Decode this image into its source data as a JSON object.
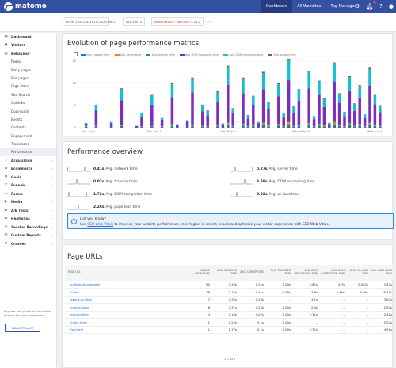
{
  "topbar": {
    "logo": "matomo",
    "nav": [
      "Dashboard",
      "All Websites",
      "Tag Manager"
    ],
    "notification_count": "2",
    "icons": [
      "gear-icon",
      "bell-icon",
      "help-icon",
      "user-icon"
    ]
  },
  "subbar": {
    "date_range": "FROM 2023-04-01 TO 2023-06-17",
    "segment": "ALL VISITS",
    "update": "NEW UPDATE: MATOMO 4.14.2",
    "collapse_icon": "chevron-up-icon"
  },
  "sidebar": {
    "items": [
      {
        "label": "Dashboard",
        "icon": "grid-icon",
        "type": "cat"
      },
      {
        "label": "Visitors",
        "icon": "user-icon",
        "type": "cat"
      },
      {
        "label": "Behaviour",
        "icon": "chart-icon",
        "type": "cat"
      },
      {
        "label": "Pages",
        "type": "sub"
      },
      {
        "label": "Entry pages",
        "type": "sub"
      },
      {
        "label": "Exit pages",
        "type": "sub"
      },
      {
        "label": "Page titles",
        "type": "sub"
      },
      {
        "label": "Site Search",
        "type": "sub"
      },
      {
        "label": "Outlinks",
        "type": "sub"
      },
      {
        "label": "Downloads",
        "type": "sub"
      },
      {
        "label": "Events",
        "type": "sub"
      },
      {
        "label": "Contents",
        "type": "sub"
      },
      {
        "label": "Engagement",
        "type": "sub"
      },
      {
        "label": "Transitions",
        "type": "sub"
      },
      {
        "label": "Performance",
        "type": "sub",
        "selected": true
      },
      {
        "label": "Acquisition",
        "icon": "share-icon",
        "type": "cat"
      },
      {
        "label": "Ecommerce",
        "icon": "cart-icon",
        "type": "cat"
      },
      {
        "label": "Goals",
        "icon": "flag-icon",
        "type": "cat"
      },
      {
        "label": "Funnels",
        "icon": "funnel-icon",
        "type": "cat"
      },
      {
        "label": "Forms",
        "icon": "form-icon",
        "type": "cat"
      },
      {
        "label": "Media",
        "icon": "play-icon",
        "type": "cat"
      },
      {
        "label": "A/B Tests",
        "icon": "ab-icon",
        "type": "cat"
      },
      {
        "label": "Heatmaps",
        "icon": "heatmap-icon",
        "type": "cat"
      },
      {
        "label": "Session Recordings",
        "icon": "record-icon",
        "type": "cat"
      },
      {
        "label": "Custom Reports",
        "icon": "report-icon",
        "type": "cat"
      },
      {
        "label": "Crashes",
        "icon": "bug-icon",
        "type": "cat"
      }
    ],
    "footer_text": "Explore and purchase essential plugins for your dashboard",
    "marketplace_label": "MARKETPLACE"
  },
  "evolution": {
    "title": "Evolution of page performance metrics"
  },
  "chart_data": {
    "type": "bar",
    "stacked": true,
    "x_ticks": [
      "Tue, Apr 1",
      "Tue, Apr 17",
      "Sat, May 2",
      "Mon, May 15",
      "Wed, Jun 4"
    ],
    "ylim": [
      0,
      15
    ],
    "y_ticks": [
      "15",
      "10",
      "5",
      "0"
    ],
    "grid": true,
    "legend": "top",
    "series": [
      {
        "name": "Avg. network time",
        "color": "#1f77b4"
      },
      {
        "name": "Avg. server time",
        "color": "#ff7f0e"
      },
      {
        "name": "Avg. transfer time",
        "color": "#2ca02c"
      },
      {
        "name": "Avg. DOM processing time",
        "color": "#7b2fbe"
      },
      {
        "name": "Avg. DOM completion time",
        "color": "#17becf"
      },
      {
        "name": "Avg. on load time",
        "color": "#8c564b"
      }
    ],
    "bars": [
      [
        0,
        0,
        0,
        0,
        0,
        0
      ],
      [
        0.2,
        0.1,
        0.1,
        0.5,
        0.2,
        0
      ],
      [
        0,
        0,
        0,
        0,
        0,
        0
      ],
      [
        0.3,
        0.1,
        0,
        3.5,
        1.2,
        0.1
      ],
      [
        0,
        0,
        0,
        0,
        0,
        0
      ],
      [
        0,
        0,
        0,
        0,
        0,
        0
      ],
      [
        0.2,
        0,
        0,
        0.8,
        0.3,
        0
      ],
      [
        0,
        0,
        0,
        0,
        0,
        0
      ],
      [
        0.4,
        0.2,
        0.1,
        5.5,
        2.5,
        0.2
      ],
      [
        0,
        0,
        0,
        0,
        0,
        0
      ],
      [
        0,
        0,
        0,
        0,
        0,
        0
      ],
      [
        0.1,
        0,
        0,
        0.3,
        0,
        0
      ],
      [
        0.2,
        0.1,
        0,
        2.2,
        0.9,
        0
      ],
      [
        0,
        0,
        0,
        0,
        0,
        0
      ],
      [
        0.3,
        0.1,
        0,
        4.8,
        2.1,
        0.1
      ],
      [
        0,
        0,
        0,
        0,
        0,
        0
      ],
      [
        0.2,
        0.1,
        0,
        1.5,
        0.4,
        0
      ],
      [
        0,
        0,
        0,
        0,
        0,
        0
      ],
      [
        0.4,
        0.3,
        0.2,
        6.0,
        2.9,
        0.2
      ],
      [
        0.1,
        0,
        0,
        0.5,
        0.2,
        0
      ],
      [
        0,
        0,
        0,
        0,
        0,
        0
      ],
      [
        0.2,
        0,
        0,
        1.2,
        0.3,
        0
      ],
      [
        0.5,
        0.2,
        0.1,
        7.2,
        3.1,
        0.2
      ],
      [
        0,
        0,
        0,
        0,
        0,
        0
      ],
      [
        0.3,
        0.1,
        0,
        3.3,
        1.4,
        0.1
      ],
      [
        0.2,
        0.1,
        0,
        2.5,
        1.0,
        0.1
      ],
      [
        0,
        0,
        0,
        0,
        0,
        0
      ],
      [
        0.4,
        0.2,
        0.1,
        5.1,
        2.2,
        0.2
      ],
      [
        0.1,
        0,
        0,
        0.6,
        0.3,
        0
      ],
      [
        0.6,
        0.4,
        0.2,
        8.5,
        4.0,
        0.3
      ],
      [
        0.3,
        0.1,
        0,
        2.8,
        1.1,
        0.1
      ],
      [
        0,
        0,
        0,
        0,
        0,
        0
      ],
      [
        0.5,
        0.3,
        0.2,
        6.8,
        3.3,
        0.2
      ],
      [
        0.2,
        0.1,
        0,
        1.8,
        0.8,
        0
      ],
      [
        0.4,
        0.2,
        0.1,
        4.4,
        2.0,
        0.1
      ],
      [
        0.1,
        0,
        0,
        0.9,
        0.3,
        0
      ],
      [
        0.6,
        0.4,
        0.2,
        7.5,
        3.6,
        0.3
      ],
      [
        0.3,
        0.2,
        0.1,
        3.6,
        1.5,
        0.1
      ],
      [
        0,
        0,
        0,
        0,
        0,
        0
      ],
      [
        0.5,
        0.3,
        0.1,
        6.2,
        2.7,
        0.2
      ],
      [
        0.2,
        0.1,
        0,
        2.0,
        0.9,
        0
      ],
      [
        0.7,
        0.5,
        0.3,
        9.2,
        4.5,
        0.3
      ],
      [
        0.3,
        0.1,
        0,
        3.0,
        1.3,
        0.1
      ],
      [
        0.4,
        0.2,
        0.1,
        5.4,
        2.4,
        0.2
      ],
      [
        0,
        0,
        0,
        0,
        0,
        0
      ],
      [
        0.6,
        0.3,
        0.2,
        7.8,
        3.7,
        0.2
      ],
      [
        0.2,
        0.1,
        0,
        1.6,
        0.7,
        0
      ],
      [
        0.5,
        0.3,
        0.1,
        6.5,
        3.0,
        0.2
      ],
      [
        0.3,
        0.2,
        0.1,
        4.1,
        1.8,
        0.1
      ],
      [
        0.1,
        0,
        0,
        0.7,
        0.3,
        0
      ],
      [
        0.7,
        0.4,
        0.3,
        8.8,
        4.2,
        0.3
      ],
      [
        0.4,
        0.2,
        0.1,
        4.9,
        2.1,
        0.1
      ],
      [
        0.2,
        0.1,
        0,
        2.3,
        1.0,
        0
      ],
      [
        0.6,
        0.3,
        0.2,
        7.1,
        3.2,
        0.2
      ],
      [
        0.3,
        0.1,
        0,
        3.4,
        1.6,
        0.1
      ],
      [
        0.5,
        0.3,
        0.1,
        5.9,
        2.6,
        0.2
      ],
      [
        0.2,
        0.1,
        0,
        1.9,
        0.8,
        0
      ],
      [
        0.6,
        0.4,
        0.2,
        8.1,
        3.9,
        0.3
      ],
      [
        0.4,
        0.2,
        0.1,
        4.6,
        2.0,
        0.1
      ],
      [
        0.3,
        0.1,
        0,
        3.1,
        1.3,
        0.1
      ]
    ]
  },
  "overview": {
    "title": "Performance overview",
    "metrics": [
      {
        "value": "0.41s",
        "label": "Avg. network time"
      },
      {
        "value": "0.27s",
        "label": "Avg. server time"
      },
      {
        "value": "0.02s",
        "label": "Avg. transfer time"
      },
      {
        "value": "3.58s",
        "label": "Avg. DOM processing time"
      },
      {
        "value": "1.72s",
        "label": "Avg. DOM completion time"
      },
      {
        "value": "0.02s",
        "label": "Avg. on load time"
      },
      {
        "value": "2.26s",
        "label": "Avg. page load time"
      }
    ],
    "info_title": "Did you know?",
    "info_text_before": "Use ",
    "info_link": "SEO Web Vitals",
    "info_text_after": " to improve your website performance, rank higher in search results and optimise your visitor experience with SEO Web Vitals."
  },
  "page_urls": {
    "title": "Page URLs",
    "columns": [
      "PAGE URL",
      "UNIQUE PAGEVIEWS",
      "AVG. NETWORK TIME",
      "AVG. SERVER TIME",
      "AVG. TRANSFER TIME",
      "AVG. DOM PROCESSING TIME",
      "AVG. DOM COMPLETION TIME",
      "AVG. ON LOAD TIME",
      "AVG. PAGE LOAD TIME"
    ],
    "rows": [
      [
        "undefined-snippetbr",
        "90",
        "0.33s",
        "0.22s",
        "0.00s",
        "2.81s",
        "0.7s",
        "0.002s",
        "3.47s"
      ],
      [
        "/index",
        "28",
        "0.18s",
        "0.41s",
        "0.08s",
        "3.6s",
        "7.46s",
        "0.09s",
        "16.71s"
      ],
      [
        "/about-us.html",
        "7",
        "0.35s",
        "0.29s",
        "–",
        "3.1s",
        "–",
        "–",
        "3.83s"
      ],
      [
        "/contact.php",
        "6",
        "0.31s",
        "0.25s",
        "0.00s",
        "2.4s",
        "–",
        "–",
        "2.97s"
      ],
      [
        "/privacy.html",
        "4",
        "0.18s",
        "0.07s",
        "0.00s",
        "2.11s",
        "–",
        "–",
        "2.42s"
      ],
      [
        "/index.html",
        "1",
        "0.23s",
        "0.1s",
        "0.00s",
        "–",
        "–",
        "–",
        "0.37s"
      ],
      [
        "/foo.html",
        "1",
        "1.77s",
        "0.1s",
        "0.00s",
        "2.71s",
        "–",
        "–",
        "4.59s"
      ]
    ],
    "pagination": "1–7 of 7"
  }
}
